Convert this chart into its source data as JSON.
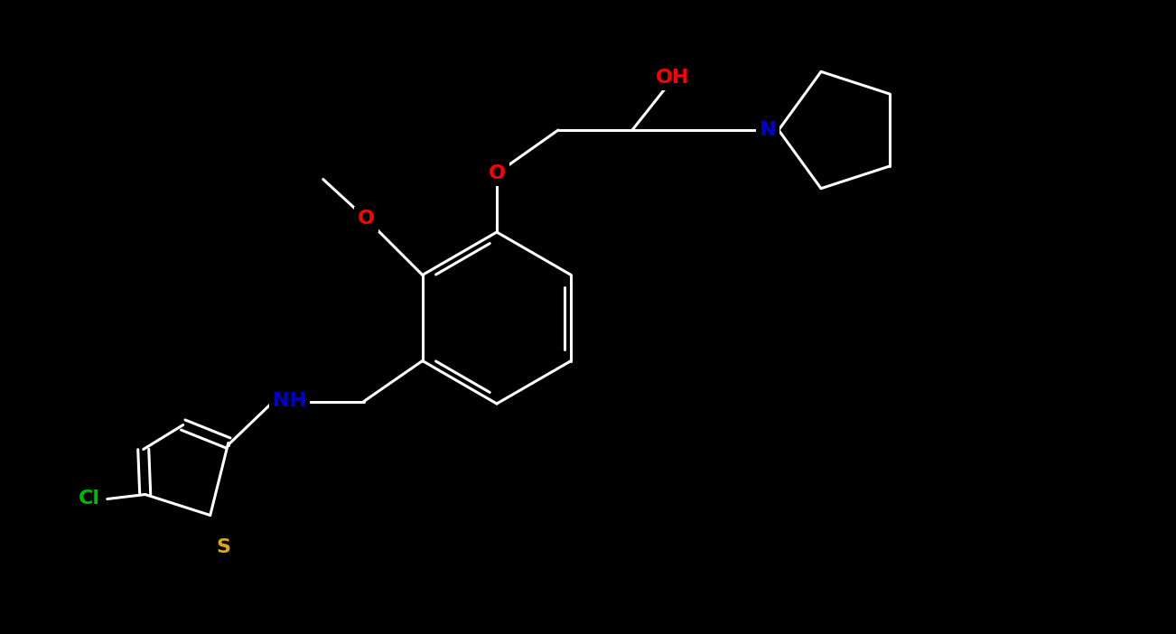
{
  "bg_color": "#000000",
  "bond_color": "#ffffff",
  "atom_colors": {
    "O": "#ff0000",
    "N": "#0000cd",
    "S": "#daa520",
    "Cl": "#00bb00",
    "NH": "#0000cd",
    "C": "#ffffff"
  },
  "figsize": [
    13.02,
    7.02
  ],
  "dpi": 100
}
